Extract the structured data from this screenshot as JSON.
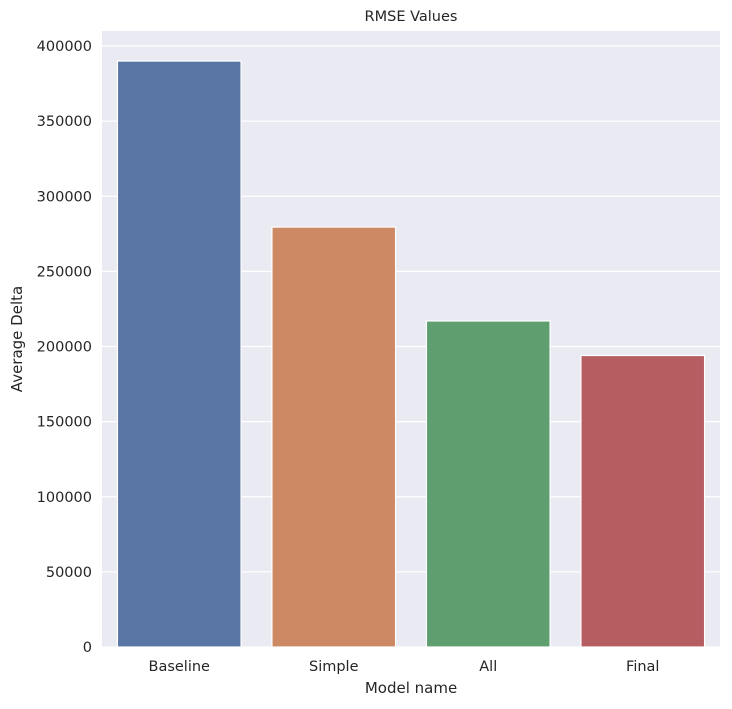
{
  "chart_data": {
    "type": "bar",
    "title": "RMSE Values",
    "xlabel": "Model name",
    "ylabel": "Average Delta",
    "categories": [
      "Baseline",
      "Simple",
      "All",
      "Final"
    ],
    "values": [
      390000,
      279500,
      217000,
      194000
    ],
    "colors": [
      "#5875a4",
      "#cc8963",
      "#5f9e6e",
      "#b55d60"
    ],
    "ylim": [
      0,
      410000
    ],
    "yticks": [
      0,
      50000,
      100000,
      150000,
      200000,
      250000,
      300000,
      350000,
      400000
    ],
    "ytick_labels": [
      "0",
      "50000",
      "100000",
      "150000",
      "200000",
      "250000",
      "300000",
      "350000",
      "400000"
    ],
    "grid": true,
    "background_color": "#eaeaf2",
    "grid_color": "#ffffff"
  }
}
